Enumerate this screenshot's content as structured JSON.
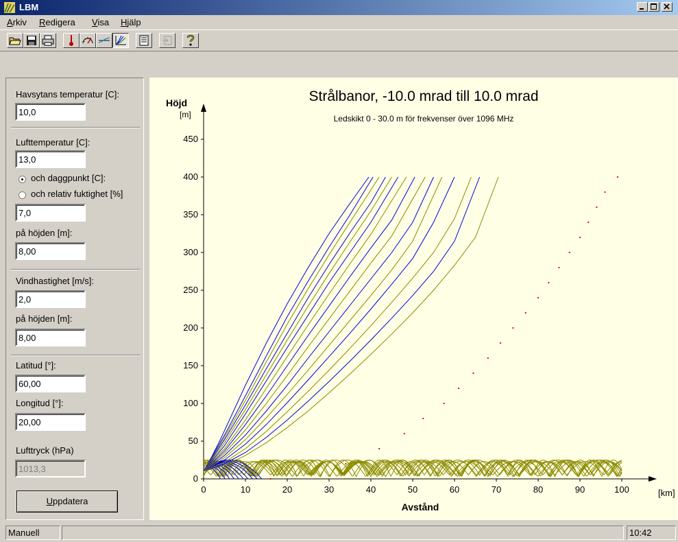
{
  "window": {
    "title": "LBM"
  },
  "menu": {
    "arkiv": {
      "u": "A",
      "rest": "rkiv"
    },
    "redigera": {
      "u": "R",
      "rest": "edigera"
    },
    "visa": {
      "u": "V",
      "rest": "isa"
    },
    "hjalp": {
      "u": "H",
      "rest": "jälp"
    }
  },
  "toolbar": [
    "open-icon",
    "save-icon",
    "print-icon",
    "thermometer-icon",
    "gauge-icon",
    "profile-icon",
    "rays-icon",
    "report-icon",
    "export-icon",
    "help-icon"
  ],
  "panel": {
    "sea_temp_label": "Havsytans temperatur [C]:",
    "sea_temp_value": "10,0",
    "air_temp_label": "Lufttemperatur [C]:",
    "air_temp_value": "13,0",
    "dewpoint_label": "och daggpunkt [C]:",
    "humidity_label": "och relativ fuktighet [%]",
    "humidity_value": "7,0",
    "height1_label": "på höjden [m]:",
    "height1_value": "8,00",
    "wind_label": "Vindhastighet [m/s]:",
    "wind_value": "2,0",
    "height2_label": "på höjden [m]:",
    "height2_value": "8,00",
    "lat_label": "Latitud [°]:",
    "lat_value": "60,00",
    "lon_label": "Longitud [°]:",
    "lon_value": "20,00",
    "pressure_label": "Lufttryck (hPa)",
    "pressure_value": "1013,3",
    "update_u": "U",
    "update_rest": "ppdatera"
  },
  "status": {
    "mode": "Manuell",
    "time": "10:42"
  },
  "colors": {
    "blue": "#0000dd",
    "olive": "#8a8a00",
    "red": "#ff0000",
    "plot_bg": "#ffffe6"
  },
  "chart_data": {
    "type": "line",
    "title": "Strålbanor, -10.0 mrad till 10.0 mrad",
    "subtitle": "Ledskikt 0 - 30.0 m för frekvenser över 1096 MHz",
    "ylabel_top": "Höjd",
    "ylabel_unit": "[m]",
    "xlabel": "Avstånd",
    "xunit": "[km]",
    "xlim": [
      0,
      100
    ],
    "ylim": [
      0,
      450
    ],
    "xticks": [
      0,
      10,
      20,
      30,
      40,
      50,
      60,
      70,
      80,
      90,
      100
    ],
    "yticks": [
      0,
      50,
      100,
      150,
      200,
      250,
      300,
      350,
      400,
      450
    ],
    "series": [
      {
        "color": "blue",
        "x": [
          0,
          2,
          4,
          6,
          8,
          10,
          15,
          20,
          25,
          30,
          35,
          39.5
        ],
        "y": [
          10,
          30,
          52,
          76,
          100,
          124,
          180,
          232,
          280,
          325,
          365,
          400
        ]
      },
      {
        "color": "blue",
        "x": [
          0,
          5,
          10,
          15,
          20,
          25,
          30,
          35,
          40.5
        ],
        "y": [
          10,
          58,
          110,
          163,
          215,
          262,
          307,
          350,
          400
        ]
      },
      {
        "color": "olive",
        "x": [
          0,
          5,
          10,
          15,
          20,
          25,
          30,
          35,
          42
        ],
        "y": [
          10,
          55,
          104,
          155,
          205,
          252,
          297,
          340,
          400
        ]
      },
      {
        "color": "blue",
        "x": [
          0,
          5,
          10,
          15,
          20,
          25,
          30,
          35,
          40,
          43.5
        ],
        "y": [
          10,
          52,
          98,
          146,
          193,
          240,
          284,
          326,
          366,
          400
        ]
      },
      {
        "color": "olive",
        "x": [
          0,
          5,
          10,
          15,
          20,
          25,
          30,
          35,
          40,
          45
        ],
        "y": [
          10,
          48,
          92,
          138,
          184,
          229,
          272,
          314,
          355,
          400
        ]
      },
      {
        "color": "blue",
        "x": [
          0,
          5,
          10,
          15,
          20,
          25,
          30,
          35,
          40,
          46.5
        ],
        "y": [
          10,
          44,
          86,
          130,
          174,
          217,
          260,
          300,
          340,
          400
        ]
      },
      {
        "color": "olive",
        "x": [
          0,
          5,
          10,
          15,
          20,
          25,
          30,
          35,
          40,
          48.5
        ],
        "y": [
          10,
          40,
          78,
          120,
          162,
          204,
          245,
          285,
          324,
          400
        ]
      },
      {
        "color": "blue",
        "x": [
          0,
          5,
          10,
          15,
          20,
          25,
          30,
          35,
          40,
          45,
          50.5
        ],
        "y": [
          10,
          37,
          72,
          110,
          150,
          190,
          229,
          268,
          306,
          343,
          400
        ]
      },
      {
        "color": "olive",
        "x": [
          0,
          5,
          10,
          15,
          20,
          25,
          30,
          35,
          40,
          45,
          53
        ],
        "y": [
          10,
          34,
          65,
          100,
          137,
          175,
          212,
          249,
          286,
          322,
          400
        ]
      },
      {
        "color": "blue",
        "x": [
          0,
          5,
          10,
          15,
          20,
          25,
          30,
          35,
          40,
          45,
          50,
          55
        ],
        "y": [
          10,
          31,
          58,
          90,
          124,
          160,
          195,
          230,
          265,
          300,
          340,
          400
        ]
      },
      {
        "color": "olive",
        "x": [
          0,
          5,
          10,
          15,
          20,
          25,
          30,
          35,
          40,
          45,
          50,
          57
        ],
        "y": [
          10,
          28,
          52,
          81,
          112,
          144,
          177,
          210,
          243,
          277,
          315,
          400
        ]
      },
      {
        "color": "blue",
        "x": [
          0,
          5,
          10,
          15,
          20,
          25,
          30,
          35,
          40,
          45,
          50,
          55,
          60
        ],
        "y": [
          10,
          25,
          46,
          72,
          101,
          131,
          162,
          193,
          225,
          258,
          292,
          340,
          400
        ]
      },
      {
        "color": "olive",
        "x": [
          0,
          5,
          10,
          15,
          20,
          25,
          30,
          35,
          40,
          45,
          50,
          55,
          60,
          64
        ],
        "y": [
          10,
          22,
          40,
          63,
          89,
          116,
          144,
          173,
          203,
          234,
          266,
          300,
          345,
          400
        ]
      },
      {
        "color": "blue",
        "x": [
          0,
          5,
          10,
          15,
          20,
          25,
          30,
          35,
          40,
          45,
          50,
          55,
          60,
          66
        ],
        "y": [
          10,
          20,
          35,
          55,
          78,
          103,
          129,
          156,
          184,
          213,
          243,
          275,
          315,
          400
        ]
      },
      {
        "color": "olive",
        "x": [
          0,
          5,
          10,
          15,
          20,
          25,
          30,
          35,
          40,
          45,
          50,
          55,
          60,
          65,
          70.5
        ],
        "y": [
          10,
          18,
          31,
          48,
          68,
          90,
          114,
          139,
          165,
          192,
          220,
          250,
          283,
          320,
          400
        ]
      }
    ],
    "marker_series": {
      "color": "red",
      "x": [
        16,
        34,
        42,
        48,
        52.5,
        57.5,
        61,
        64.5,
        68,
        71,
        74,
        77,
        80,
        82.5,
        85,
        87.5,
        90,
        92,
        94,
        96,
        99
      ],
      "y": [
        0,
        20,
        40,
        60,
        80,
        100,
        120,
        140,
        160,
        180,
        200,
        220,
        240,
        260,
        280,
        300,
        320,
        340,
        360,
        380,
        400
      ]
    }
  }
}
